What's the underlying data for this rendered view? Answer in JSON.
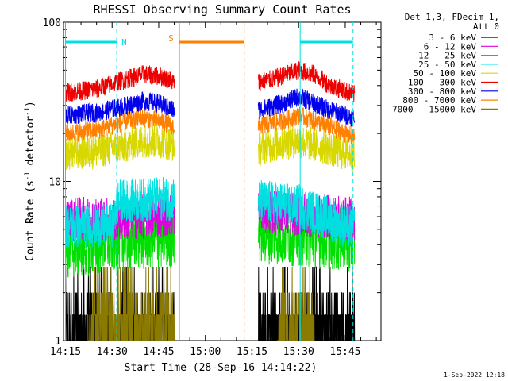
{
  "chart_data": {
    "type": "line",
    "title": "RHESSI Observing Summary Count Rates",
    "xlabel": "Start Time (28-Sep-16 14:14:22)",
    "ylabel": "Count Rate (s⁻¹ detector⁻¹)",
    "ylabel_main": "Count Rate (s",
    "ylabel_sup1": "-1",
    "ylabel_mid": " detector",
    "ylabel_sup2": "-1",
    "ylabel_end": ")",
    "y_scale": "log",
    "ylim": [
      1,
      100
    ],
    "xlim": [
      "14:14:22",
      "15:56:30"
    ],
    "x_ticks": [
      "14:15",
      "14:30",
      "14:45",
      "15:00",
      "15:15",
      "15:30",
      "15:45"
    ],
    "y_ticks": [
      "1",
      "10",
      "100"
    ],
    "legend": {
      "position": "top-right",
      "header": [
        "Det 1,3, FDecim 1,",
        "Att 0"
      ],
      "entries": [
        {
          "label": "3 - 6 keV",
          "color": "#000000"
        },
        {
          "label": "6 - 12 keV",
          "color": "#e000e0"
        },
        {
          "label": "12 - 25 keV",
          "color": "#00e000"
        },
        {
          "label": "25 - 50 keV",
          "color": "#00e0e0"
        },
        {
          "label": "50 - 100 keV",
          "color": "#d8d800"
        },
        {
          "label": "100 - 300 keV",
          "color": "#ee0000"
        },
        {
          "label": "300 - 800 keV",
          "color": "#0000ee"
        },
        {
          "label": "800 - 7000 keV",
          "color": "#ff8000"
        },
        {
          "label": "7000 - 15000 keV",
          "color": "#8a7a00"
        }
      ]
    },
    "data_gaps": [
      [
        "14:51:40",
        "15:16:40"
      ]
    ],
    "series": [
      {
        "name": "100 - 300 keV",
        "color": "#ee0000",
        "segments": [
          {
            "x": [
              "14:15",
              "14:25",
              "14:35",
              "14:40",
              "14:45",
              "14:48",
              "14:50"
            ],
            "y": [
              36,
              38,
              44,
              47,
              46,
              44,
              42
            ]
          },
          {
            "x": [
              "15:17",
              "15:20",
              "15:25",
              "15:30",
              "15:35",
              "15:40",
              "15:45",
              "15:48"
            ],
            "y": [
              42,
              43,
              46,
              50,
              47,
              40,
              37,
              35
            ]
          }
        ]
      },
      {
        "name": "300 - 800 keV",
        "color": "#0000ee",
        "segments": [
          {
            "x": [
              "14:15",
              "14:25",
              "14:35",
              "14:40",
              "14:45",
              "14:48",
              "14:50"
            ],
            "y": [
              26,
              27,
              30,
              32,
              31,
              29,
              28
            ]
          },
          {
            "x": [
              "15:17",
              "15:20",
              "15:25",
              "15:30",
              "15:35",
              "15:40",
              "15:45",
              "15:48"
            ],
            "y": [
              28,
              29,
              31,
              34,
              31,
              28,
              26,
              25
            ]
          }
        ]
      },
      {
        "name": "800 - 7000 keV",
        "color": "#ff8000",
        "segments": [
          {
            "x": [
              "14:15",
              "14:25",
              "14:35",
              "14:40",
              "14:45",
              "14:48",
              "14:50"
            ],
            "y": [
              20,
              21,
              24,
              25,
              24,
              23,
              22
            ]
          },
          {
            "x": [
              "15:17",
              "15:20",
              "15:25",
              "15:30",
              "15:35",
              "15:40",
              "15:45",
              "15:48"
            ],
            "y": [
              22,
              23,
              24,
              26,
              24,
              22,
              20,
              19
            ]
          }
        ]
      },
      {
        "name": "50 - 100 keV",
        "color": "#d8d800",
        "segments": [
          {
            "x": [
              "14:15",
              "14:25",
              "14:35",
              "14:40",
              "14:45",
              "14:48",
              "14:50"
            ],
            "y": [
              15,
              15.5,
              17,
              18,
              18,
              17.5,
              17
            ]
          },
          {
            "x": [
              "15:17",
              "15:20",
              "15:25",
              "15:30",
              "15:35",
              "15:40",
              "15:45",
              "15:48"
            ],
            "y": [
              16,
              16.5,
              17.5,
              18,
              17,
              16,
              15,
              14.5
            ]
          }
        ]
      },
      {
        "name": "25 - 50 keV",
        "color": "#00e0e0",
        "segments": [
          {
            "x": [
              "14:15",
              "14:30",
              "14:32",
              "14:50"
            ],
            "y": [
              5.2,
              5.3,
              7.5,
              7.8
            ]
          },
          {
            "x": [
              "15:17",
              "15:30",
              "15:45",
              "15:48"
            ],
            "y": [
              7.5,
              7.0,
              5.2,
              5.1
            ]
          }
        ]
      },
      {
        "name": "6 - 12 keV",
        "color": "#e000e0",
        "segments": [
          {
            "x": [
              "14:15",
              "14:30",
              "14:50"
            ],
            "y": [
              5.8,
              5.8,
              6.2
            ]
          },
          {
            "x": [
              "15:17",
              "15:48"
            ],
            "y": [
              6.5,
              5.8
            ]
          }
        ]
      },
      {
        "name": "12 - 25 keV",
        "color": "#00e000",
        "segments": [
          {
            "x": [
              "14:15",
              "14:30",
              "14:50"
            ],
            "y": [
              3.8,
              4.2,
              4.5
            ]
          },
          {
            "x": [
              "15:17",
              "15:30",
              "15:48"
            ],
            "y": [
              4.8,
              4.6,
              4.2
            ]
          }
        ]
      },
      {
        "name": "3 - 6 keV",
        "color": "#000000",
        "segments": [
          {
            "x": [
              "14:15",
              "14:50"
            ],
            "y": [
              1.3,
              1.35
            ]
          },
          {
            "x": [
              "15:17",
              "15:48"
            ],
            "y": [
              1.4,
              1.3
            ]
          }
        ]
      },
      {
        "name": "7000 - 15000 keV",
        "color": "#8a7a00",
        "segments": [
          {
            "x": [
              "14:22",
              "14:50"
            ],
            "y": [
              1.25,
              1.3
            ]
          },
          {
            "x": [
              "15:23",
              "15:35"
            ],
            "y": [
              1.3,
              1.25
            ]
          }
        ]
      }
    ],
    "flag_bars": [
      {
        "label": "N",
        "color": "#00e0e0",
        "start": "14:15",
        "end": "14:31:30",
        "line_start_style": "solid",
        "line_end_style": "dashed"
      },
      {
        "label": "S",
        "color": "#ff8000",
        "start": "14:51:40",
        "end": "15:12:30",
        "line_start_style": "solid",
        "line_end_style": "dashed"
      },
      {
        "label": "",
        "color": "#00e0e0",
        "start": "15:30:30",
        "end": "15:47:30",
        "line_start_style": "solid",
        "line_end_style": "dashed"
      }
    ],
    "footer_timestamp": "1-Sep-2022 12:18"
  }
}
